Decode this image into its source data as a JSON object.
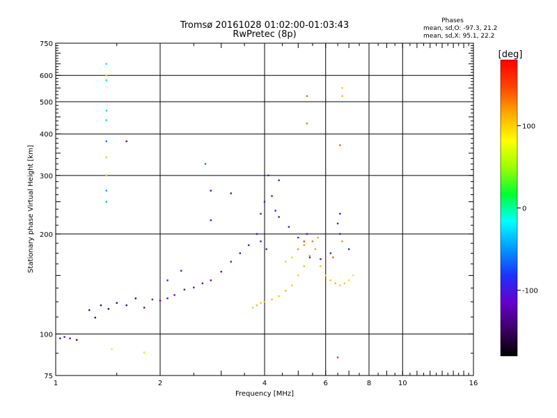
{
  "chart_data": {
    "type": "scatter",
    "title": "Tromsø 20161028 01:02:00-01:03:43",
    "subtitle": "RwPretec (8p)",
    "stats": {
      "heading": "Phases",
      "line_o": "mean, sd,O: -97.3, 21.2",
      "line_x": "mean, sd,X:  95.1, 22.2"
    },
    "xlabel": "Frequency [MHz]",
    "ylabel": "Stationary phase Virtual Height [km]",
    "x_scale": "log",
    "y_scale": "log",
    "xlim": [
      1,
      16
    ],
    "ylim": [
      75,
      750
    ],
    "x_ticks": [
      "1",
      "2",
      "4",
      "6",
      "8",
      "10",
      "16"
    ],
    "y_ticks": [
      "75",
      "100",
      "200",
      "300",
      "400",
      "500",
      "600",
      "750"
    ],
    "grid": true,
    "colorbar": {
      "label": "[deg]",
      "range": [
        -180,
        180
      ],
      "ticks": [
        "100",
        "0",
        "-100"
      ],
      "colors": [
        "#000000",
        "#3d0066",
        "#6600cc",
        "#1a33ff",
        "#0099ff",
        "#00ffff",
        "#00ff33",
        "#99ff00",
        "#ffff00",
        "#ffaa00",
        "#ff4400",
        "#ff0000"
      ]
    },
    "series": [
      {
        "x": [
          1.03,
          1.06,
          1.1,
          1.15,
          1.25,
          1.3,
          1.35,
          1.42,
          1.5,
          1.6,
          1.7,
          1.8,
          1.9,
          2.0,
          2.1,
          2.2,
          2.35,
          2.5,
          2.65,
          2.8,
          3.0,
          3.2,
          3.4,
          3.6,
          3.9,
          4.1,
          4.4,
          4.7,
          5.0,
          5.4,
          5.8,
          6.2,
          6.6,
          7.0,
          1.4,
          1.4,
          1.4,
          1.4,
          1.4,
          1.4,
          1.4,
          1.4,
          1.4,
          1.6,
          2.7,
          2.8,
          2.8,
          3.2,
          4.0,
          4.2,
          4.3,
          4.4,
          3.9,
          3.8,
          4.05,
          5.0,
          5.3,
          6.5,
          6.6,
          2.1,
          2.3
        ],
        "y": [
          97,
          98,
          97,
          96,
          118,
          112,
          122,
          119,
          124,
          122,
          128,
          120,
          127,
          126,
          128,
          131,
          136,
          138,
          142,
          145,
          154,
          165,
          175,
          185,
          230,
          300,
          290,
          210,
          195,
          170,
          168,
          175,
          230,
          180,
          650,
          580,
          470,
          440,
          380,
          340,
          300,
          270,
          250,
          380,
          325,
          270,
          220,
          265,
          250,
          260,
          235,
          225,
          190,
          200,
          180,
          180,
          200,
          215,
          200,
          145,
          155
        ],
        "phase": [
          -110,
          -110,
          -105,
          -140,
          -140,
          -145,
          -140,
          -135,
          -140,
          -140,
          -140,
          -125,
          -115,
          -120,
          -120,
          -115,
          -110,
          -115,
          -120,
          -110,
          -110,
          -105,
          -100,
          -105,
          -95,
          -95,
          -95,
          -100,
          -100,
          -95,
          -100,
          -95,
          -95,
          -95,
          -25,
          -25,
          -25,
          -30,
          -60,
          -120,
          -70,
          -45,
          -40,
          -120,
          -60,
          -120,
          -90,
          -120,
          -95,
          -95,
          -100,
          -100,
          -110,
          -105,
          -95,
          -95,
          -95,
          -100,
          -100,
          -100,
          -100
        ]
      },
      {
        "x": [
          3.7,
          3.8,
          3.9,
          4.0,
          4.2,
          4.4,
          4.6,
          4.8,
          5.0,
          5.2,
          5.4,
          5.6,
          5.8,
          6.0,
          6.2,
          6.4,
          6.6,
          6.8,
          7.0,
          7.2,
          4.6,
          4.8,
          5.0,
          5.2,
          5.5,
          5.7,
          6.3,
          6.7,
          5.3,
          5.3,
          6.7,
          6.7,
          6.6,
          1.4,
          1.4,
          1.4,
          1.45,
          1.8,
          5.2,
          6.5
        ],
        "y": [
          120,
          122,
          124,
          125,
          127,
          130,
          135,
          140,
          150,
          160,
          172,
          180,
          160,
          150,
          145,
          142,
          140,
          142,
          145,
          150,
          165,
          170,
          180,
          185,
          190,
          195,
          170,
          190,
          520,
          430,
          550,
          520,
          370,
          600,
          300,
          340,
          90,
          88,
          190,
          85
        ],
        "phase": [
          105,
          110,
          105,
          110,
          105,
          100,
          110,
          105,
          100,
          110,
          115,
          120,
          110,
          100,
          105,
          110,
          100,
          105,
          95,
          90,
          100,
          95,
          110,
          120,
          130,
          115,
          140,
          125,
          140,
          130,
          100,
          110,
          140,
          55,
          100,
          90,
          90,
          60,
          150,
          160
        ]
      }
    ]
  }
}
